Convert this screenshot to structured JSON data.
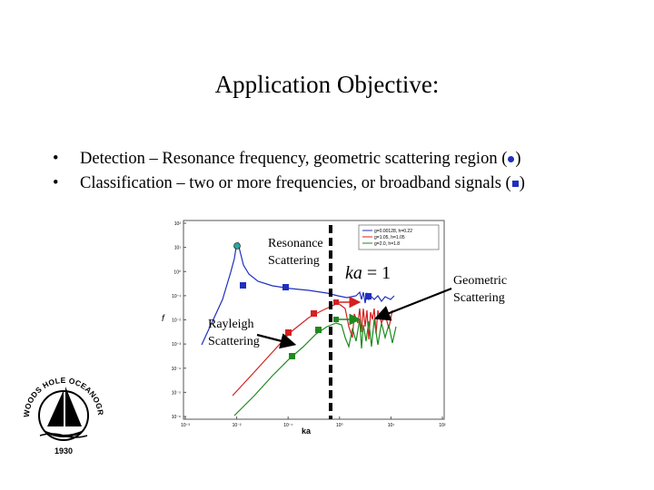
{
  "slide": {
    "title": "Application Objective:",
    "bullets": [
      {
        "bullet": "•",
        "text": "Detection –  Resonance frequency, geometric scattering region (",
        "close": ")"
      },
      {
        "bullet": "•",
        "text": "Classification – two or more frequencies, or broadband signals (",
        "close": ")"
      }
    ]
  },
  "annotations": {
    "resonance": [
      "Resonance",
      "Scattering"
    ],
    "geometric": [
      "Geometric",
      "Scattering"
    ],
    "rayleigh": [
      "Rayleigh",
      "Scattering"
    ],
    "ka_eq": {
      "lhs": "ka",
      "rhs": "= 1"
    }
  },
  "chart_data": {
    "type": "line",
    "xlabel": "ka",
    "ylabel": "f",
    "x_scale": "log",
    "y_scale": "log",
    "xlim": [
      0.001,
      100
    ],
    "x_ticks": [
      "10⁻³",
      "10⁻²",
      "10⁻¹",
      "10⁰",
      "10¹",
      "10²"
    ],
    "y_ticks": [
      "10²",
      "10¹",
      "10⁰",
      "10⁻¹",
      "10⁻²",
      "10⁻³",
      "10⁻⁴",
      "10⁻⁵",
      "10⁻⁶"
    ],
    "series": [
      {
        "name": "g=0.00128, h=0.22",
        "color": "#1f2fbf"
      },
      {
        "name": "g=1.05, h=1.05",
        "color": "#d42020"
      },
      {
        "name": "g=2.0, h=1.8",
        "color": "#1e8a1e"
      }
    ],
    "vline_ka": 1,
    "colors": {
      "blue": "#1f2fbf",
      "red": "#d42020",
      "green": "#1e8a1e",
      "teal": "#2aa79a"
    }
  },
  "logo": {
    "text": "WOODS HOLE OCEANOGRAPHIC INSTITUTION",
    "year": "1930"
  }
}
